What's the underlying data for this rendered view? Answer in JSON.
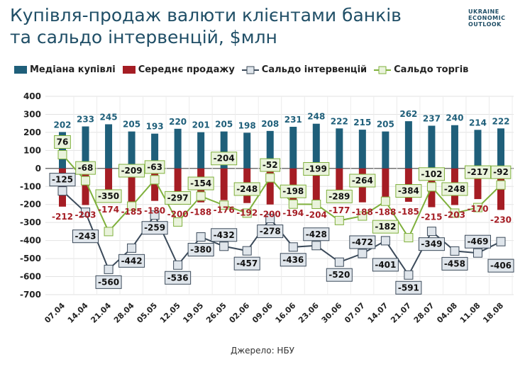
{
  "title_line1": "Купівля-продаж валюти клієнтами банків",
  "title_line2": "та сальдо інтервенцій, $млн",
  "logo": "UKRAINE ECONOMIC OUTLOOK",
  "source": "Джерело: НБУ",
  "colors": {
    "buy": "#1f5f7a",
    "sell": "#a51d24",
    "interv": "#3b4a5a",
    "interv_box": "#dfe5eb",
    "trade": "#7fb03c",
    "trade_box": "#eaf3dc"
  },
  "chart_data": {
    "type": "bar+line",
    "title": "Купівля-продаж валюти клієнтами банків та сальдо інтервенцій, $млн",
    "categories": [
      "07.04",
      "14.04",
      "21.04",
      "28.04",
      "05.05",
      "12.05",
      "19.05",
      "26.05",
      "02.06",
      "09.06",
      "16.06",
      "23.06",
      "30.06",
      "07.07",
      "14.07",
      "21.07",
      "28.07",
      "04.08",
      "11.08",
      "18.08"
    ],
    "series": [
      {
        "name": "Медіана купівлі",
        "type": "bar",
        "values": [
          202,
          233,
          245,
          205,
          193,
          220,
          201,
          205,
          198,
          208,
          231,
          248,
          222,
          215,
          205,
          262,
          237,
          240,
          214,
          222
        ]
      },
      {
        "name": "Середнє продажу",
        "type": "bar",
        "values": [
          -212,
          -203,
          -174,
          -185,
          -180,
          -200,
          -188,
          -176,
          -192,
          -200,
          -194,
          -204,
          -177,
          -188,
          -188,
          -185,
          -215,
          -203,
          -170,
          -230
        ]
      },
      {
        "name": "Сальдо інтервенцій",
        "type": "line",
        "values": [
          -125,
          -243,
          -560,
          -442,
          -259,
          -536,
          -380,
          -432,
          -457,
          -278,
          -436,
          -428,
          -520,
          -472,
          -401,
          -591,
          -349,
          -458,
          -469,
          -406
        ]
      },
      {
        "name": "Сальдо торгів",
        "type": "line",
        "values": [
          76,
          -68,
          -350,
          -209,
          -63,
          -297,
          -154,
          -204,
          -248,
          -52,
          -198,
          -199,
          -289,
          -264,
          -182,
          -384,
          -102,
          -248,
          -217,
          -92
        ]
      }
    ],
    "yticks": [
      400,
      300,
      200,
      100,
      0,
      -100,
      -200,
      -300,
      -400,
      -500,
      -600,
      -700
    ],
    "ylim": [
      -700,
      400
    ],
    "grid": true,
    "legend": "top"
  }
}
